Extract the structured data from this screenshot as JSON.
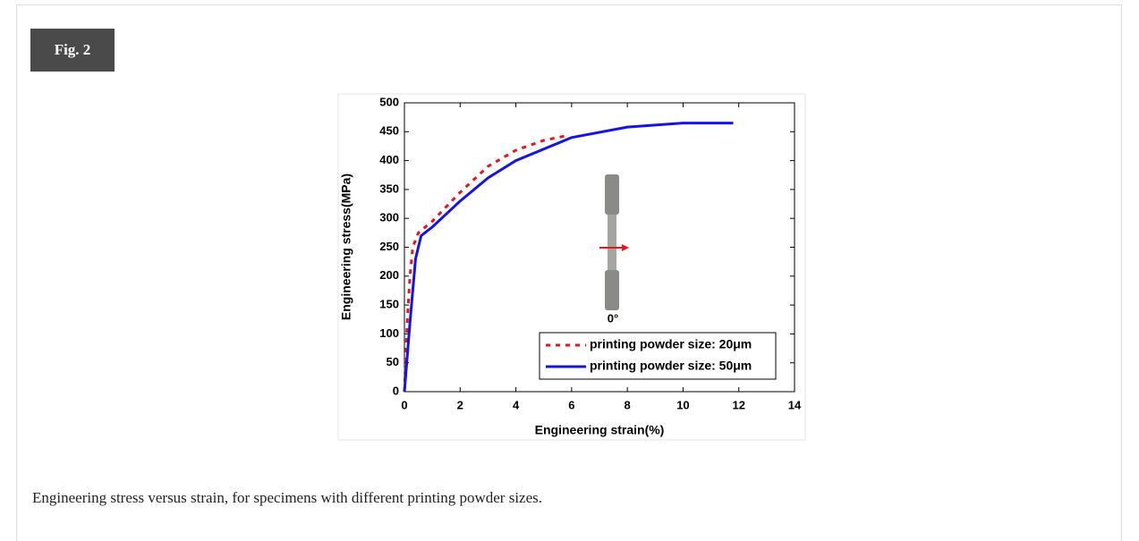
{
  "figure_label": "Fig. 2",
  "caption": "Engineering stress versus strain, for specimens with different printing powder sizes.",
  "chart_data": {
    "type": "line",
    "xlabel": "Engineering strain(%)",
    "ylabel": "Engineering stress(MPa)",
    "annotation": "0°",
    "xlim": [
      0,
      14
    ],
    "xticks": [
      0,
      2,
      4,
      6,
      8,
      10,
      12,
      14
    ],
    "ylim": [
      0,
      500
    ],
    "yticks": [
      0,
      50,
      100,
      150,
      200,
      250,
      300,
      350,
      400,
      450,
      500
    ],
    "legend": "lower right",
    "series": [
      {
        "name": "printing powder size: 20μm",
        "color": "#e8141c",
        "dash": true,
        "x": [
          0,
          0.1,
          0.2,
          0.3,
          0.5,
          1,
          2,
          3,
          4,
          5,
          5.8
        ],
        "values": [
          0,
          120,
          200,
          250,
          275,
          295,
          345,
          390,
          418,
          435,
          443
        ]
      },
      {
        "name": "printing powder size: 50μm",
        "color": "#1414e6",
        "dash": false,
        "x": [
          0,
          0.2,
          0.4,
          0.6,
          1,
          2,
          3,
          4,
          6,
          8,
          10,
          11.8
        ],
        "values": [
          0,
          120,
          230,
          270,
          285,
          330,
          370,
          400,
          440,
          458,
          465,
          465
        ]
      }
    ]
  }
}
